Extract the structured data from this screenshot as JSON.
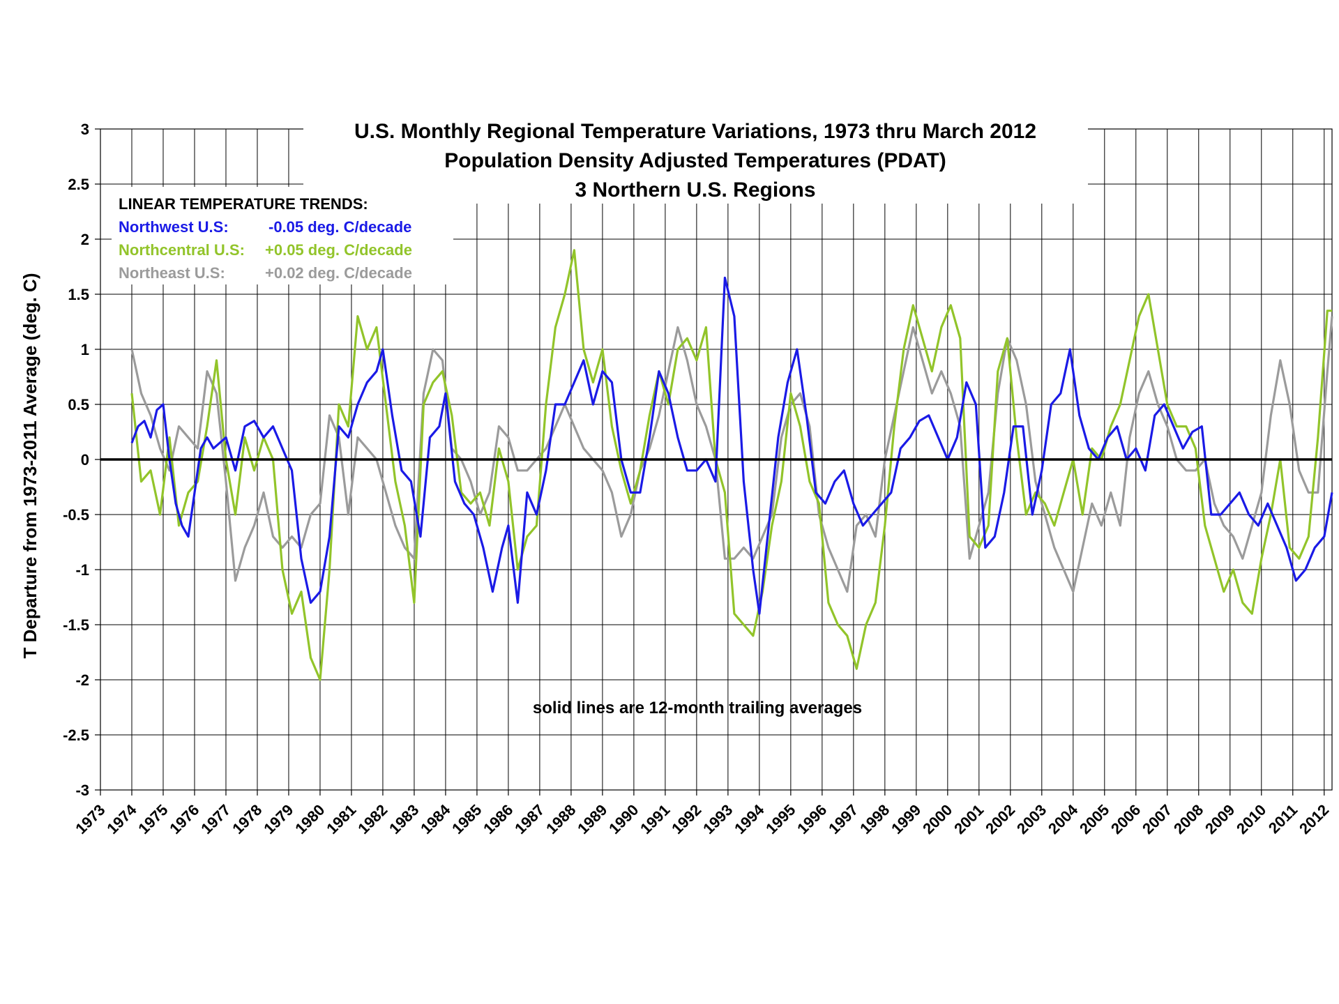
{
  "chart_data": {
    "type": "line",
    "title": [
      "U.S. Monthly Regional Temperature Variations, 1973 thru March 2012",
      "Population Density Adjusted Temperatures (PDAT)",
      "3 Northern U.S. Regions"
    ],
    "ylabel": "T Departure from 1973-2011 Average (deg. C)",
    "xlabel": "",
    "ylim": [
      -3,
      3
    ],
    "xlim": [
      1973,
      2012.25
    ],
    "y_ticks": [
      "3",
      "2.5",
      "2",
      "1.5",
      "1",
      "0.5",
      "0",
      "-0.5",
      "-1",
      "-1.5",
      "-2",
      "-2.5",
      "-3"
    ],
    "x_ticks": [
      "1973",
      "1974",
      "1975",
      "1976",
      "1977",
      "1978",
      "1979",
      "1980",
      "1981",
      "1982",
      "1983",
      "1984",
      "1985",
      "1986",
      "1987",
      "1988",
      "1989",
      "1990",
      "1991",
      "1992",
      "1993",
      "1994",
      "1995",
      "1996",
      "1997",
      "1998",
      "1999",
      "2000",
      "2001",
      "2002",
      "2003",
      "2004",
      "2005",
      "2006",
      "2007",
      "2008",
      "2009",
      "2010",
      "2011",
      "2012"
    ],
    "grid": true,
    "zero_line": true,
    "trend_heading": "LINEAR TEMPERATURE TRENDS:",
    "note": "solid lines are 12-month trailing averages",
    "series": [
      {
        "name": "Northwest U.S:",
        "trend": "-0.05 deg. C/decade",
        "color": "#1a1ae6",
        "x": [
          1974.0,
          1974.2,
          1974.4,
          1974.6,
          1974.8,
          1975.0,
          1975.2,
          1975.4,
          1975.6,
          1975.8,
          1976.0,
          1976.2,
          1976.4,
          1976.6,
          1976.8,
          1977.0,
          1977.3,
          1977.6,
          1977.9,
          1978.2,
          1978.5,
          1978.8,
          1979.1,
          1979.4,
          1979.7,
          1980.0,
          1980.3,
          1980.6,
          1980.9,
          1981.2,
          1981.5,
          1981.8,
          1982.0,
          1982.3,
          1982.6,
          1982.9,
          1983.2,
          1983.5,
          1983.8,
          1984.0,
          1984.3,
          1984.6,
          1984.9,
          1985.2,
          1985.5,
          1985.8,
          1986.0,
          1986.3,
          1986.6,
          1986.9,
          1987.2,
          1987.5,
          1987.8,
          1988.1,
          1988.4,
          1988.7,
          1989.0,
          1989.3,
          1989.6,
          1989.9,
          1990.2,
          1990.5,
          1990.8,
          1991.1,
          1991.4,
          1991.7,
          1992.0,
          1992.3,
          1992.6,
          1992.9,
          1993.2,
          1993.5,
          1993.8,
          1994.0,
          1994.3,
          1994.6,
          1994.9,
          1995.2,
          1995.5,
          1995.8,
          1996.1,
          1996.4,
          1996.7,
          1997.0,
          1997.3,
          1997.6,
          1997.9,
          1998.2,
          1998.5,
          1998.8,
          1999.1,
          1999.4,
          1999.7,
          2000.0,
          2000.3,
          2000.6,
          2000.9,
          2001.2,
          2001.5,
          2001.8,
          2002.1,
          2002.4,
          2002.7,
          2003.0,
          2003.3,
          2003.6,
          2003.9,
          2004.2,
          2004.5,
          2004.8,
          2005.1,
          2005.4,
          2005.7,
          2006.0,
          2006.3,
          2006.6,
          2006.9,
          2007.2,
          2007.5,
          2007.8,
          2008.1,
          2008.4,
          2008.7,
          2009.0,
          2009.3,
          2009.6,
          2009.9,
          2010.2,
          2010.5,
          2010.8,
          2011.1,
          2011.4,
          2011.7,
          2012.0,
          2012.25
        ],
        "values": [
          0.15,
          0.3,
          0.35,
          0.2,
          0.45,
          0.5,
          0.0,
          -0.4,
          -0.6,
          -0.7,
          -0.3,
          0.1,
          0.2,
          0.1,
          0.15,
          0.2,
          -0.1,
          0.3,
          0.35,
          0.2,
          0.3,
          0.1,
          -0.1,
          -0.9,
          -1.3,
          -1.2,
          -0.7,
          0.3,
          0.2,
          0.5,
          0.7,
          0.8,
          1.0,
          0.4,
          -0.1,
          -0.2,
          -0.7,
          0.2,
          0.3,
          0.6,
          -0.2,
          -0.4,
          -0.5,
          -0.8,
          -1.2,
          -0.8,
          -0.6,
          -1.3,
          -0.3,
          -0.5,
          -0.1,
          0.5,
          0.5,
          0.7,
          0.9,
          0.5,
          0.8,
          0.7,
          0.0,
          -0.3,
          -0.3,
          0.2,
          0.8,
          0.6,
          0.2,
          -0.1,
          -0.1,
          0.0,
          -0.2,
          1.65,
          1.3,
          -0.2,
          -1.0,
          -1.4,
          -0.6,
          0.2,
          0.7,
          1.0,
          0.4,
          -0.3,
          -0.4,
          -0.2,
          -0.1,
          -0.4,
          -0.6,
          -0.5,
          -0.4,
          -0.3,
          0.1,
          0.2,
          0.35,
          0.4,
          0.2,
          0.0,
          0.2,
          0.7,
          0.5,
          -0.8,
          -0.7,
          -0.3,
          0.3,
          0.3,
          -0.5,
          -0.1,
          0.5,
          0.6,
          1.0,
          0.4,
          0.1,
          0.0,
          0.2,
          0.3,
          0.0,
          0.1,
          -0.1,
          0.4,
          0.5,
          0.3,
          0.1,
          0.25,
          0.3,
          -0.5,
          -0.5,
          -0.4,
          -0.3,
          -0.5,
          -0.6,
          -0.4,
          -0.6,
          -0.8,
          -1.1,
          -1.0,
          -0.8,
          -0.7,
          -0.3
        ],
        "point_labels": []
      },
      {
        "name": "Northcentral U.S:",
        "trend": "+0.05 deg. C/decade",
        "color": "#92c42a",
        "x": [
          1974.0,
          1974.3,
          1974.6,
          1974.9,
          1975.2,
          1975.5,
          1975.8,
          1976.1,
          1976.4,
          1976.7,
          1977.0,
          1977.3,
          1977.6,
          1977.9,
          1978.2,
          1978.5,
          1978.8,
          1979.1,
          1979.4,
          1979.7,
          1980.0,
          1980.3,
          1980.6,
          1980.9,
          1981.2,
          1981.5,
          1981.8,
          1982.1,
          1982.4,
          1982.7,
          1983.0,
          1983.3,
          1983.6,
          1983.9,
          1984.2,
          1984.5,
          1984.8,
          1985.1,
          1985.4,
          1985.7,
          1986.0,
          1986.3,
          1986.6,
          1986.9,
          1987.2,
          1987.5,
          1987.8,
          1988.1,
          1988.4,
          1988.7,
          1989.0,
          1989.3,
          1989.6,
          1989.9,
          1990.2,
          1990.5,
          1990.8,
          1991.1,
          1991.4,
          1991.7,
          1992.0,
          1992.3,
          1992.6,
          1992.9,
          1993.2,
          1993.5,
          1993.8,
          1994.1,
          1994.4,
          1994.7,
          1995.0,
          1995.3,
          1995.6,
          1995.9,
          1996.2,
          1996.5,
          1996.8,
          1997.1,
          1997.4,
          1997.7,
          1998.0,
          1998.3,
          1998.6,
          1998.9,
          1999.2,
          1999.5,
          1999.8,
          2000.1,
          2000.4,
          2000.7,
          2001.0,
          2001.3,
          2001.6,
          2001.9,
          2002.2,
          2002.5,
          2002.8,
          2003.1,
          2003.4,
          2003.7,
          2004.0,
          2004.3,
          2004.6,
          2004.9,
          2005.2,
          2005.5,
          2005.8,
          2006.1,
          2006.4,
          2006.7,
          2007.0,
          2007.3,
          2007.6,
          2007.9,
          2008.2,
          2008.5,
          2008.8,
          2009.1,
          2009.4,
          2009.7,
          2010.0,
          2010.3,
          2010.6,
          2010.9,
          2011.2,
          2011.5,
          2011.8,
          2012.1,
          2012.25
        ],
        "values": [
          0.6,
          -0.2,
          -0.1,
          -0.5,
          0.2,
          -0.6,
          -0.3,
          -0.2,
          0.3,
          0.9,
          0.0,
          -0.5,
          0.2,
          -0.1,
          0.2,
          0.0,
          -1.0,
          -1.4,
          -1.2,
          -1.8,
          -2.0,
          -1.0,
          0.5,
          0.3,
          1.3,
          1.0,
          1.2,
          0.5,
          -0.2,
          -0.6,
          -1.3,
          0.5,
          0.7,
          0.8,
          0.4,
          -0.3,
          -0.4,
          -0.3,
          -0.6,
          0.1,
          -0.2,
          -1.0,
          -0.7,
          -0.6,
          0.5,
          1.2,
          1.5,
          1.9,
          1.0,
          0.7,
          1.0,
          0.3,
          -0.1,
          -0.4,
          -0.1,
          0.4,
          0.8,
          0.5,
          1.0,
          1.1,
          0.9,
          1.2,
          0.0,
          -0.3,
          -1.4,
          -1.5,
          -1.6,
          -1.2,
          -0.6,
          -0.2,
          0.6,
          0.3,
          -0.2,
          -0.4,
          -1.3,
          -1.5,
          -1.6,
          -1.9,
          -1.5,
          -1.3,
          -0.6,
          0.3,
          1.0,
          1.4,
          1.1,
          0.8,
          1.2,
          1.4,
          1.1,
          -0.7,
          -0.8,
          -0.6,
          0.8,
          1.1,
          0.2,
          -0.5,
          -0.3,
          -0.4,
          -0.6,
          -0.3,
          0.0,
          -0.5,
          0.1,
          0.0,
          0.3,
          0.5,
          0.9,
          1.3,
          1.5,
          1.0,
          0.5,
          0.3,
          0.3,
          0.1,
          -0.6,
          -0.9,
          -1.2,
          -1.0,
          -1.3,
          -1.4,
          -0.9,
          -0.5,
          0.0,
          -0.8,
          -0.9,
          -0.7,
          0.2,
          1.35,
          1.35
        ],
        "point_labels": []
      },
      {
        "name": "Northeast U.S:",
        "trend": "+0.02 deg. C/decade",
        "color": "#9b9b9b",
        "x": [
          1974.0,
          1974.3,
          1974.6,
          1974.9,
          1975.2,
          1975.5,
          1975.8,
          1976.1,
          1976.4,
          1976.7,
          1977.0,
          1977.3,
          1977.6,
          1977.9,
          1978.2,
          1978.5,
          1978.8,
          1979.1,
          1979.4,
          1979.7,
          1980.0,
          1980.3,
          1980.6,
          1980.9,
          1981.2,
          1981.5,
          1981.8,
          1982.1,
          1982.4,
          1982.7,
          1983.0,
          1983.3,
          1983.6,
          1983.9,
          1984.2,
          1984.5,
          1984.8,
          1985.1,
          1985.4,
          1985.7,
          1986.0,
          1986.3,
          1986.6,
          1986.9,
          1987.2,
          1987.5,
          1987.8,
          1988.1,
          1988.4,
          1988.7,
          1989.0,
          1989.3,
          1989.6,
          1989.9,
          1990.2,
          1990.5,
          1990.8,
          1991.1,
          1991.4,
          1991.7,
          1992.0,
          1992.3,
          1992.6,
          1992.9,
          1993.2,
          1993.5,
          1993.8,
          1994.1,
          1994.4,
          1994.7,
          1995.0,
          1995.3,
          1995.6,
          1995.9,
          1996.2,
          1996.5,
          1996.8,
          1997.1,
          1997.4,
          1997.7,
          1998.0,
          1998.3,
          1998.6,
          1998.9,
          1999.2,
          1999.5,
          1999.8,
          2000.1,
          2000.4,
          2000.7,
          2001.0,
          2001.3,
          2001.6,
          2001.9,
          2002.2,
          2002.5,
          2002.8,
          2003.1,
          2003.4,
          2003.7,
          2004.0,
          2004.3,
          2004.6,
          2004.9,
          2005.2,
          2005.5,
          2005.8,
          2006.1,
          2006.4,
          2006.7,
          2007.0,
          2007.3,
          2007.6,
          2007.9,
          2008.2,
          2008.5,
          2008.8,
          2009.1,
          2009.4,
          2009.7,
          2010.0,
          2010.3,
          2010.6,
          2010.9,
          2011.2,
          2011.5,
          2011.8,
          2012.1,
          2012.25
        ],
        "values": [
          1.0,
          0.6,
          0.4,
          0.1,
          -0.1,
          0.3,
          0.2,
          0.1,
          0.8,
          0.6,
          -0.2,
          -1.1,
          -0.8,
          -0.6,
          -0.3,
          -0.7,
          -0.8,
          -0.7,
          -0.8,
          -0.5,
          -0.4,
          0.4,
          0.2,
          -0.5,
          0.2,
          0.1,
          0.0,
          -0.3,
          -0.6,
          -0.8,
          -0.9,
          0.6,
          1.0,
          0.9,
          0.1,
          0.0,
          -0.2,
          -0.5,
          -0.3,
          0.3,
          0.2,
          -0.1,
          -0.1,
          0.0,
          0.1,
          0.3,
          0.5,
          0.3,
          0.1,
          0.0,
          -0.1,
          -0.3,
          -0.7,
          -0.5,
          -0.1,
          0.1,
          0.4,
          0.8,
          1.2,
          0.9,
          0.5,
          0.3,
          0.0,
          -0.9,
          -0.9,
          -0.8,
          -0.9,
          -0.7,
          -0.5,
          0.2,
          0.5,
          0.6,
          0.3,
          -0.5,
          -0.8,
          -1.0,
          -1.2,
          -0.6,
          -0.5,
          -0.7,
          0.0,
          0.4,
          0.8,
          1.2,
          0.9,
          0.6,
          0.8,
          0.6,
          0.3,
          -0.9,
          -0.6,
          -0.3,
          0.6,
          1.1,
          0.9,
          0.5,
          -0.2,
          -0.5,
          -0.8,
          -1.0,
          -1.2,
          -0.8,
          -0.4,
          -0.6,
          -0.3,
          -0.6,
          0.2,
          0.6,
          0.8,
          0.5,
          0.3,
          0.0,
          -0.1,
          -0.1,
          0.0,
          -0.4,
          -0.6,
          -0.7,
          -0.9,
          -0.6,
          -0.3,
          0.4,
          0.9,
          0.5,
          -0.1,
          -0.3,
          -0.3,
          0.8,
          1.3
        ],
        "point_labels": []
      }
    ]
  }
}
